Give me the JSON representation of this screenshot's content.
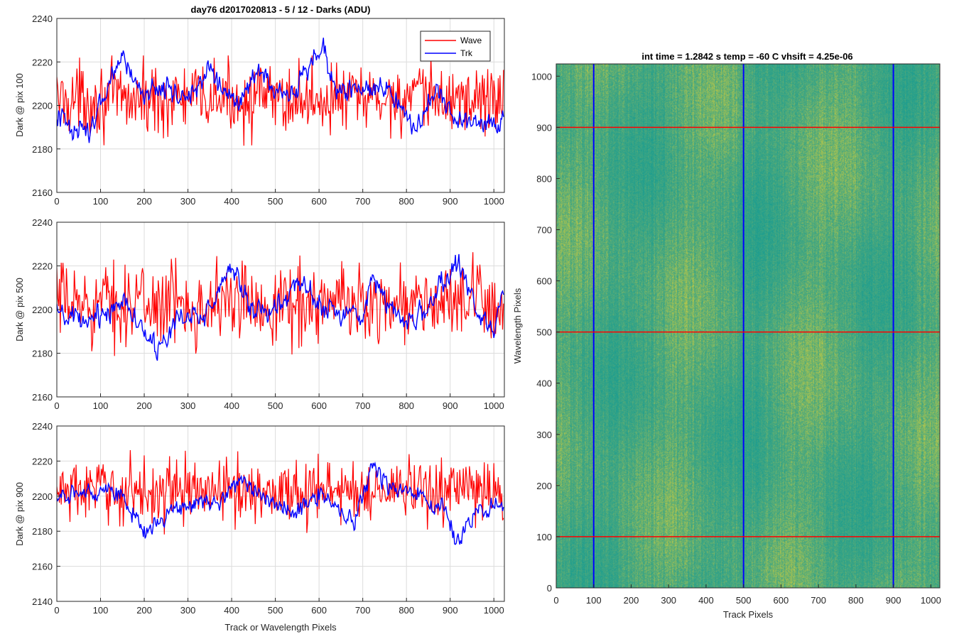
{
  "figure_title": "day76 d2017020813 - 5 / 12 - Darks (ADU)",
  "colors": {
    "wave": "#ff0000",
    "trk": "#0000ff",
    "grid": "#dcdcdc",
    "axis": "#262626",
    "heat_low": "#1e9e8f",
    "heat_mid": "#4aa87e",
    "heat_high": "#b5c64a"
  },
  "chart_data": [
    {
      "type": "line",
      "panel": "top-left",
      "title": "day76 d2017020813 - 5 / 12 - Darks (ADU)",
      "xlabel": "",
      "ylabel": "Dark @ pix 100",
      "xlim": [
        0,
        1024
      ],
      "ylim": [
        2160,
        2240
      ],
      "xticks": [
        0,
        100,
        200,
        300,
        400,
        500,
        600,
        700,
        800,
        900,
        1000
      ],
      "yticks": [
        2160,
        2180,
        2200,
        2220,
        2240
      ],
      "grid": true,
      "legend": {
        "placement": "top-right",
        "entries": [
          "Wave",
          "Trk"
        ]
      },
      "series": [
        {
          "name": "Wave",
          "color": "#ff0000",
          "mean": 2203,
          "noise": 8,
          "spike_min": 2167,
          "spike_max": 2223,
          "trend": [
            [
              0,
              2203
            ],
            [
              1024,
              2203
            ]
          ]
        },
        {
          "name": "Trk",
          "color": "#0000ff",
          "mean": 2205,
          "noise": 4,
          "trend": [
            [
              0,
              2195
            ],
            [
              40,
              2190
            ],
            [
              80,
              2188
            ],
            [
              100,
              2200
            ],
            [
              150,
              2222
            ],
            [
              200,
              2205
            ],
            [
              250,
              2210
            ],
            [
              300,
              2202
            ],
            [
              350,
              2218
            ],
            [
              380,
              2205
            ],
            [
              420,
              2202
            ],
            [
              460,
              2215
            ],
            [
              500,
              2207
            ],
            [
              540,
              2203
            ],
            [
              580,
              2220
            ],
            [
              610,
              2225
            ],
            [
              650,
              2205
            ],
            [
              700,
              2208
            ],
            [
              760,
              2207
            ],
            [
              790,
              2202
            ],
            [
              820,
              2188
            ],
            [
              860,
              2205
            ],
            [
              900,
              2198
            ],
            [
              950,
              2192
            ],
            [
              1000,
              2192
            ],
            [
              1024,
              2196
            ]
          ]
        }
      ]
    },
    {
      "type": "line",
      "panel": "middle-left",
      "xlabel": "",
      "ylabel": "Dark @ pix 500",
      "xlim": [
        0,
        1024
      ],
      "ylim": [
        2160,
        2240
      ],
      "xticks": [
        0,
        100,
        200,
        300,
        400,
        500,
        600,
        700,
        800,
        900,
        1000
      ],
      "yticks": [
        2160,
        2180,
        2200,
        2220,
        2240
      ],
      "grid": true,
      "series": [
        {
          "name": "Wave",
          "color": "#ff0000",
          "mean": 2203,
          "noise": 9,
          "spike_min": 2170,
          "spike_max": 2235,
          "trend": [
            [
              0,
              2203
            ],
            [
              1024,
              2203
            ]
          ]
        },
        {
          "name": "Trk",
          "color": "#0000ff",
          "mean": 2200,
          "noise": 4,
          "trend": [
            [
              0,
              2198
            ],
            [
              60,
              2193
            ],
            [
              120,
              2200
            ],
            [
              160,
              2205
            ],
            [
              200,
              2190
            ],
            [
              230,
              2180
            ],
            [
              280,
              2196
            ],
            [
              340,
              2198
            ],
            [
              400,
              2220
            ],
            [
              450,
              2200
            ],
            [
              490,
              2198
            ],
            [
              530,
              2206
            ],
            [
              560,
              2212
            ],
            [
              620,
              2200
            ],
            [
              700,
              2197
            ],
            [
              720,
              2218
            ],
            [
              760,
              2200
            ],
            [
              820,
              2195
            ],
            [
              880,
              2210
            ],
            [
              920,
              2222
            ],
            [
              960,
              2200
            ],
            [
              1000,
              2192
            ],
            [
              1024,
              2208
            ]
          ]
        }
      ]
    },
    {
      "type": "line",
      "panel": "bottom-left",
      "xlabel": "Track or Wavelength Pixels",
      "ylabel": "Dark @ pix 900",
      "xlim": [
        0,
        1024
      ],
      "ylim": [
        2140,
        2240
      ],
      "xticks": [
        0,
        100,
        200,
        300,
        400,
        500,
        600,
        700,
        800,
        900,
        1000
      ],
      "yticks": [
        2140,
        2160,
        2180,
        2200,
        2220,
        2240
      ],
      "grid": true,
      "series": [
        {
          "name": "Wave",
          "color": "#ff0000",
          "mean": 2203,
          "noise": 9,
          "spike_min": 2158,
          "spike_max": 2228,
          "trend": [
            [
              0,
              2203
            ],
            [
              1024,
              2203
            ]
          ]
        },
        {
          "name": "Trk",
          "color": "#0000ff",
          "mean": 2198,
          "noise": 4,
          "trend": [
            [
              0,
              2198
            ],
            [
              60,
              2202
            ],
            [
              120,
              2205
            ],
            [
              160,
              2195
            ],
            [
              200,
              2180
            ],
            [
              240,
              2188
            ],
            [
              300,
              2197
            ],
            [
              360,
              2195
            ],
            [
              420,
              2210
            ],
            [
              480,
              2197
            ],
            [
              540,
              2190
            ],
            [
              600,
              2200
            ],
            [
              640,
              2195
            ],
            [
              680,
              2185
            ],
            [
              720,
              2218
            ],
            [
              760,
              2205
            ],
            [
              820,
              2200
            ],
            [
              880,
              2195
            ],
            [
              910,
              2175
            ],
            [
              960,
              2190
            ],
            [
              1024,
              2196
            ]
          ]
        }
      ]
    },
    {
      "type": "heatmap",
      "panel": "right",
      "title": "int time = 1.2842 s    temp = -60 C    vhsift = 4.25e-06",
      "xlabel": "Track Pixels",
      "ylabel": "Wavelength Pixels",
      "xlim": [
        0,
        1024
      ],
      "ylim": [
        0,
        1024
      ],
      "xticks": [
        0,
        100,
        200,
        300,
        400,
        500,
        600,
        700,
        800,
        900,
        1000
      ],
      "yticks": [
        0,
        100,
        200,
        300,
        400,
        500,
        600,
        700,
        800,
        900,
        1000
      ],
      "colormap": "parula",
      "vertical_markers": {
        "color": "#0000ff",
        "x": [
          100,
          500,
          900
        ]
      },
      "horizontal_markers": {
        "color": "#ff0000",
        "y": [
          100,
          500,
          900
        ]
      }
    }
  ]
}
